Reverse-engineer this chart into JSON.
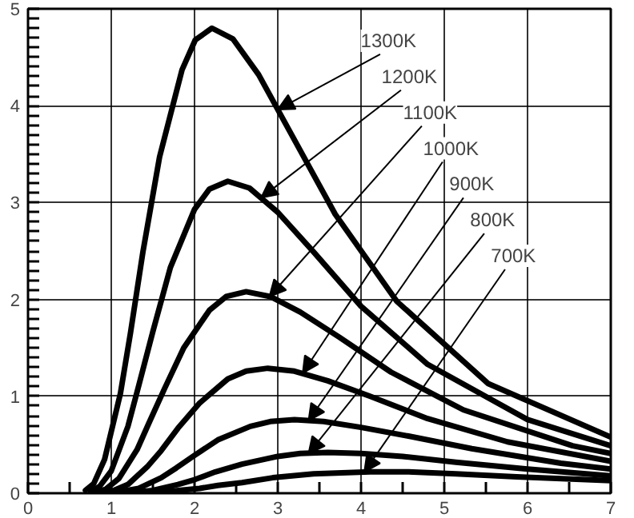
{
  "chart_data": {
    "type": "line",
    "xlim": [
      0,
      7
    ],
    "ylim": [
      0,
      5
    ],
    "xticks": [
      0,
      1,
      2,
      3,
      4,
      5,
      6,
      7
    ],
    "yticks": [
      0,
      1,
      2,
      3,
      4,
      5
    ],
    "grid": true,
    "line_style": "solid",
    "series": [
      {
        "color": "#000000",
        "x": [
          0.69,
          0.79,
          0.92,
          1.11,
          1.23,
          1.38,
          1.58,
          1.85,
          2.01,
          2.21,
          2.46,
          2.77,
          3.16,
          3.69,
          4.43,
          5.53,
          7
        ],
        "values": [
          0.03,
          0.1,
          0.35,
          1.03,
          1.65,
          2.49,
          3.47,
          4.37,
          4.68,
          4.8,
          4.69,
          4.32,
          3.71,
          2.88,
          1.98,
          1.13,
          0.58
        ]
      },
      {
        "color": "#000000",
        "x": [
          0.75,
          0.86,
          1.0,
          1.2,
          1.33,
          1.5,
          1.71,
          2.0,
          2.18,
          2.4,
          2.66,
          3.0,
          3.43,
          4.0,
          4.8,
          6.0,
          7
        ],
        "values": [
          0.02,
          0.07,
          0.23,
          0.69,
          1.11,
          1.67,
          2.33,
          2.93,
          3.14,
          3.22,
          3.15,
          2.9,
          2.49,
          1.93,
          1.33,
          0.76,
          0.49
        ]
      },
      {
        "color": "#000000",
        "x": [
          0.82,
          0.93,
          1.09,
          1.31,
          1.45,
          1.64,
          1.87,
          2.18,
          2.38,
          2.62,
          2.91,
          3.27,
          3.74,
          4.36,
          5.23,
          6.54,
          7
        ],
        "values": [
          0.01,
          0.04,
          0.15,
          0.45,
          0.72,
          1.08,
          1.5,
          1.89,
          2.03,
          2.08,
          2.03,
          1.87,
          1.61,
          1.25,
          0.86,
          0.49,
          0.41
        ]
      },
      {
        "color": "#000000",
        "x": [
          0.9,
          1.03,
          1.2,
          1.44,
          1.6,
          1.8,
          2.06,
          2.4,
          2.62,
          2.88,
          3.2,
          3.6,
          4.11,
          4.8,
          5.76,
          7
        ],
        "values": [
          0.01,
          0.03,
          0.09,
          0.28,
          0.44,
          0.67,
          0.93,
          1.18,
          1.26,
          1.29,
          1.26,
          1.16,
          1.0,
          0.77,
          0.53,
          0.33
        ]
      },
      {
        "color": "#000000",
        "x": [
          1.0,
          1.14,
          1.33,
          1.6,
          1.78,
          2.0,
          2.28,
          2.67,
          2.91,
          3.2,
          3.55,
          4.0,
          4.57,
          5.33,
          6.4,
          7
        ],
        "values": [
          0.0,
          0.02,
          0.05,
          0.16,
          0.26,
          0.39,
          0.55,
          0.69,
          0.74,
          0.76,
          0.74,
          0.68,
          0.59,
          0.46,
          0.31,
          0.25
        ]
      },
      {
        "color": "#000000",
        "x": [
          1.12,
          1.29,
          1.5,
          1.8,
          2.0,
          2.25,
          2.57,
          3.0,
          3.27,
          3.6,
          4.0,
          4.5,
          5.14,
          6.0,
          7
        ],
        "values": [
          0.0,
          0.01,
          0.03,
          0.09,
          0.14,
          0.22,
          0.3,
          0.38,
          0.41,
          0.42,
          0.41,
          0.38,
          0.32,
          0.25,
          0.18
        ]
      },
      {
        "color": "#000000",
        "x": [
          1.29,
          1.47,
          1.71,
          2.06,
          2.28,
          2.57,
          2.94,
          3.43,
          4.11,
          4.57,
          5.14,
          5.87,
          7
        ],
        "values": [
          0.0,
          0.0,
          0.02,
          0.05,
          0.08,
          0.11,
          0.16,
          0.2,
          0.22,
          0.22,
          0.2,
          0.17,
          0.13
        ]
      }
    ],
    "annotations": [
      {
        "text": "1300K",
        "x": 3.0,
        "y": 3.96
      },
      {
        "text": "1200K",
        "x": 2.8,
        "y": 3.05
      },
      {
        "text": "1100K",
        "x": 2.9,
        "y": 2.03
      },
      {
        "text": "1000K",
        "x": 3.3,
        "y": 1.24
      },
      {
        "text": "900K",
        "x": 3.37,
        "y": 0.75
      },
      {
        "text": "800K",
        "x": 3.37,
        "y": 0.41
      },
      {
        "text": "700K",
        "x": 4.04,
        "y": 0.22
      }
    ]
  }
}
